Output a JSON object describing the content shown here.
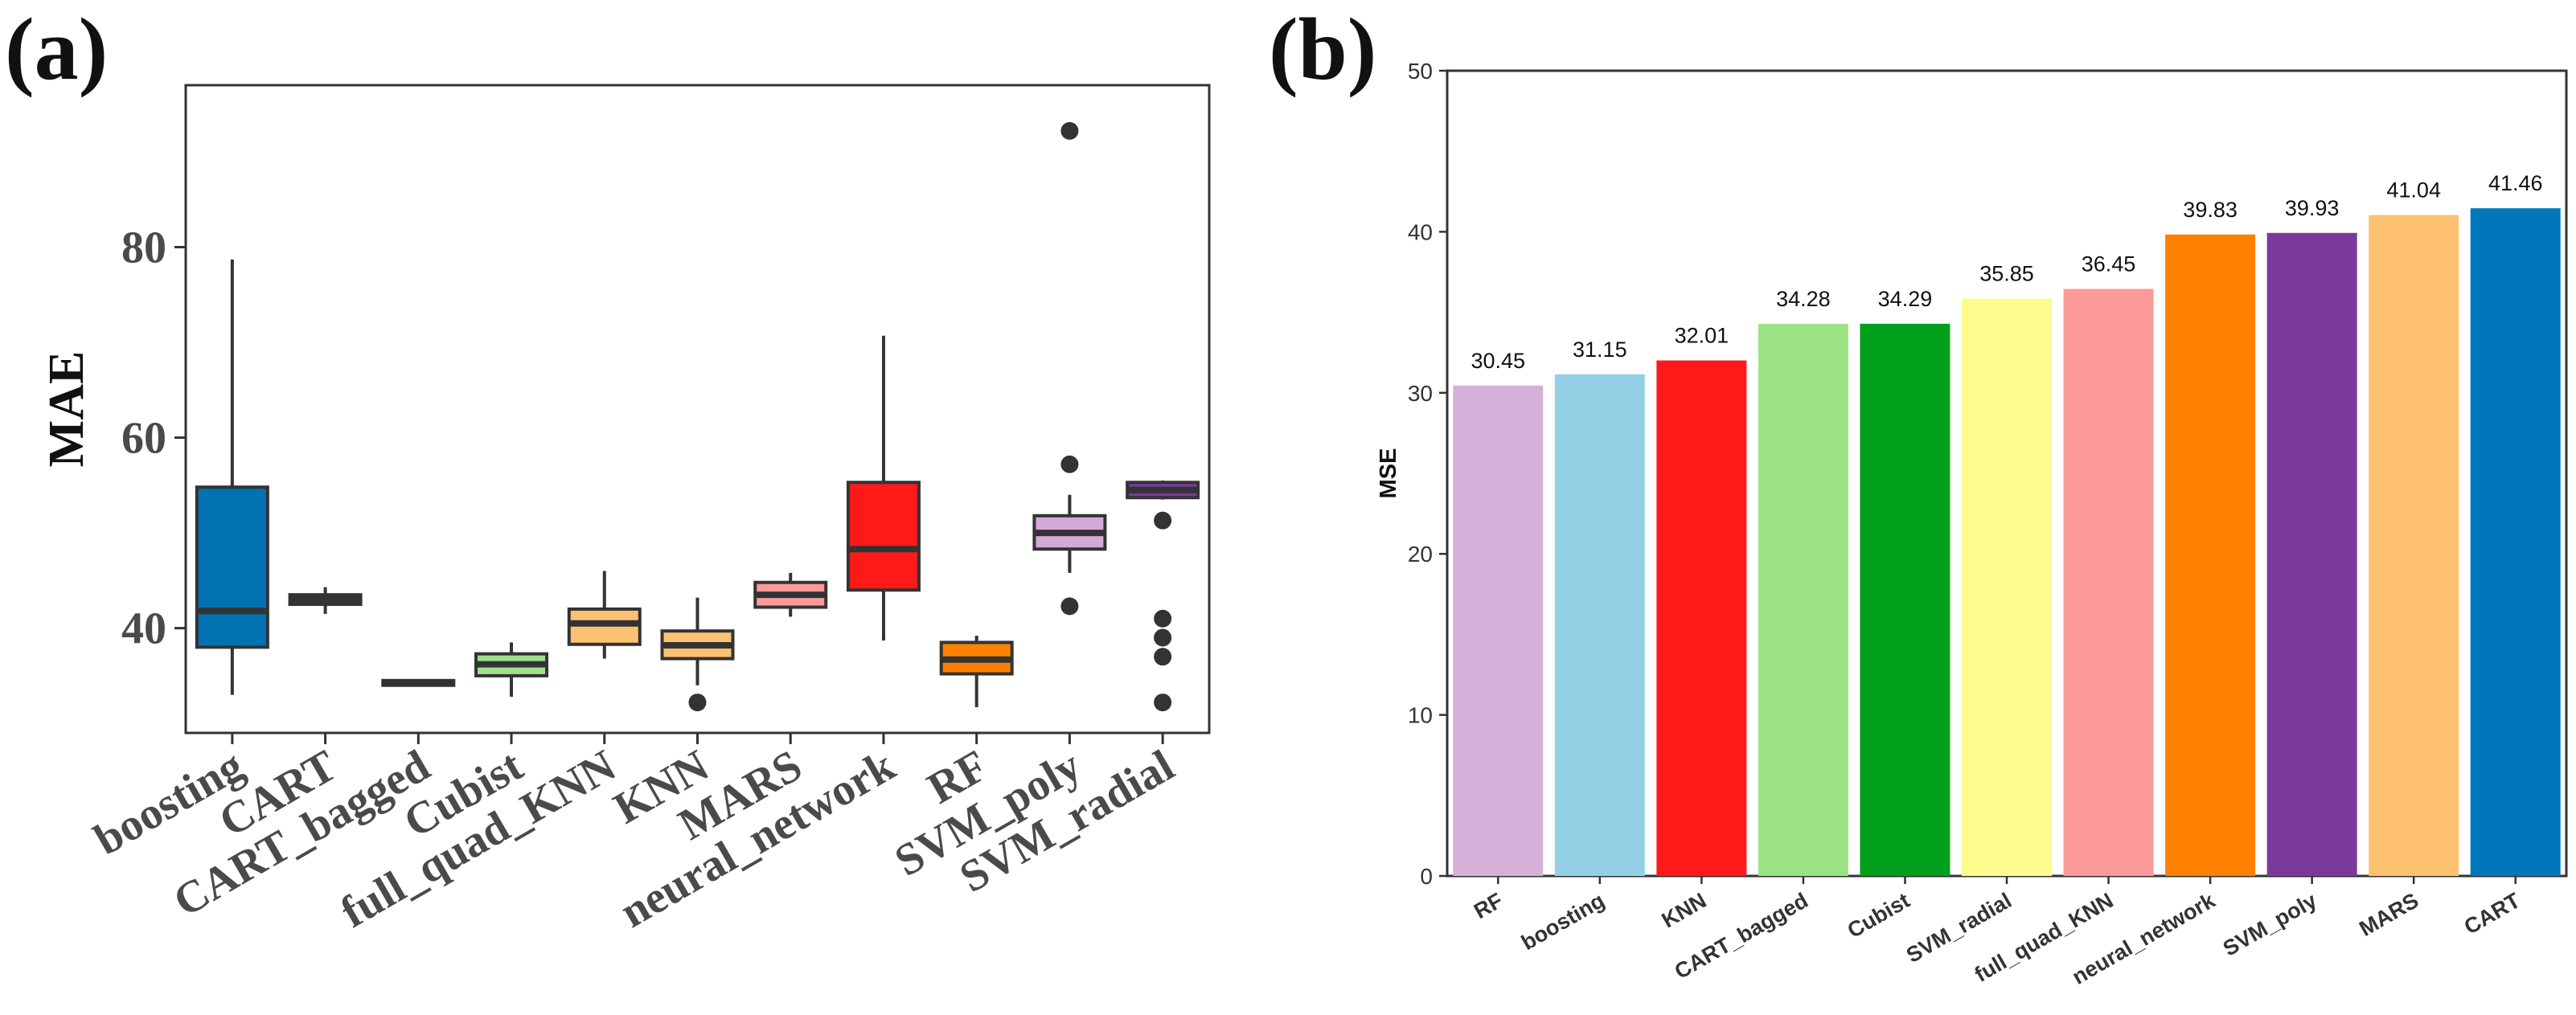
{
  "chart_data": [
    {
      "panel_label": "(a)",
      "type": "box",
      "title": "",
      "xlabel": "",
      "ylabel": "MAE",
      "ylim": [
        29,
        97
      ],
      "yticks": [
        40,
        60,
        80
      ],
      "grid": false,
      "categories": [
        "boosting",
        "CART",
        "CART_bagged",
        "Cubist",
        "full_quad_KNN",
        "KNN",
        "MARS",
        "neural_network",
        "RF",
        "SVM_poly",
        "SVM_radial"
      ],
      "boxes": [
        {
          "name": "boosting",
          "whisker_low": 33,
          "q1": 38,
          "median": 41.8,
          "q3": 54.8,
          "whisker_high": 78.7,
          "outliers": [],
          "color": "#0072B2"
        },
        {
          "name": "CART",
          "whisker_low": 41.5,
          "q1": 42.5,
          "median": 43,
          "q3": 43.5,
          "whisker_high": 44.3,
          "outliers": [],
          "color": "#1a7a3a"
        },
        {
          "name": "CART_bagged",
          "whisker_low": 34,
          "q1": 34,
          "median": 34.3,
          "q3": 34.5,
          "whisker_high": 34.5,
          "outliers": [],
          "color": "#9ACD77"
        },
        {
          "name": "Cubist",
          "whisker_low": 32.8,
          "q1": 35,
          "median": 36.2,
          "q3": 37.3,
          "whisker_high": 38.5,
          "outliers": [],
          "color": "#9FE08F"
        },
        {
          "name": "full_quad_KNN",
          "whisker_low": 36.8,
          "q1": 38.3,
          "median": 40.5,
          "q3": 42,
          "whisker_high": 46,
          "outliers": [],
          "color": "#FDC173"
        },
        {
          "name": "KNN",
          "whisker_low": 34,
          "q1": 36.8,
          "median": 38.2,
          "q3": 39.7,
          "whisker_high": 43.2,
          "outliers": [
            32.2
          ],
          "color": "#FDC173"
        },
        {
          "name": "MARS",
          "whisker_low": 41.2,
          "q1": 42.2,
          "median": 43.5,
          "q3": 44.8,
          "whisker_high": 45.8,
          "outliers": [],
          "color": "#FB9A99"
        },
        {
          "name": "neural_network",
          "whisker_low": 38.7,
          "q1": 44,
          "median": 48.3,
          "q3": 55.3,
          "whisker_high": 70.7,
          "outliers": [],
          "color": "#FF1A1A"
        },
        {
          "name": "RF",
          "whisker_low": 31.7,
          "q1": 35.2,
          "median": 36.7,
          "q3": 38.5,
          "whisker_high": 39.2,
          "outliers": [],
          "color": "#FF8000"
        },
        {
          "name": "SVM_poly",
          "whisker_low": 45.8,
          "q1": 48.3,
          "median": 50,
          "q3": 51.8,
          "whisker_high": 54,
          "outliers": [
            42.3,
            57.2,
            92.2
          ],
          "color": "#D4A9D8"
        },
        {
          "name": "SVM_radial",
          "whisker_low": 53.5,
          "q1": 53.7,
          "median": 54.5,
          "q3": 55.3,
          "whisker_high": 55.5,
          "outliers": [
            51.3,
            41,
            39,
            37,
            32.2
          ],
          "color": "#7A3A9A"
        }
      ]
    },
    {
      "panel_label": "(b)",
      "type": "bar",
      "title": "",
      "xlabel": "",
      "ylabel": "MSE",
      "ylim": [
        0,
        50
      ],
      "yticks": [
        0,
        10,
        20,
        30,
        40,
        50
      ],
      "grid": false,
      "categories": [
        "RF",
        "boosting",
        "KNN",
        "CART_bagged",
        "Cubist",
        "SVM_radial",
        "full_quad_KNN",
        "neural_network",
        "SVM_poly",
        "MARS",
        "CART"
      ],
      "values": [
        30.45,
        31.15,
        32.01,
        34.28,
        34.29,
        35.85,
        36.45,
        39.83,
        39.93,
        41.04,
        41.46
      ],
      "value_labels": [
        "30.45",
        "31.15",
        "32.01",
        "34.28",
        "34.29",
        "35.85",
        "36.45",
        "39.83",
        "39.93",
        "41.04",
        "41.46"
      ],
      "colors": [
        "#D5B0D9",
        "#93D0E6",
        "#FF1A1A",
        "#9BE284",
        "#00A01A",
        "#FDFB8B",
        "#FB9A99",
        "#FF8000",
        "#7A3A9A",
        "#FDC170",
        "#0077BB"
      ]
    }
  ]
}
